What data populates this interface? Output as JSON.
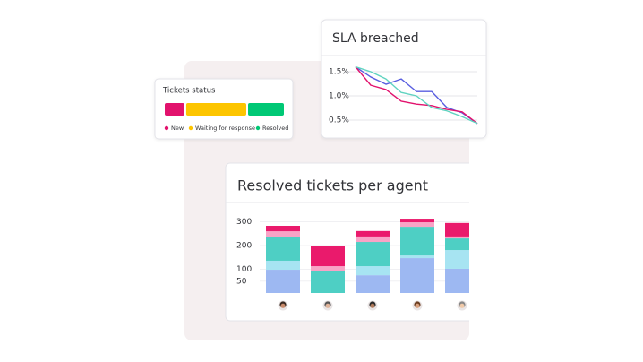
{
  "chart_data": [
    {
      "type": "bar",
      "orientation": "horizontal",
      "stacked": true,
      "title": "Tickets status",
      "categories": [
        null
      ],
      "series": [
        {
          "name": "New",
          "color": "#e2126d",
          "values": [
            17
          ]
        },
        {
          "name": "Waiting for response",
          "color": "#fdc500",
          "values": [
            52
          ]
        },
        {
          "name": "Resolved",
          "color": "#00c875",
          "values": [
            31
          ]
        }
      ],
      "legend": "bottom"
    },
    {
      "type": "line",
      "title": "SLA breached",
      "categories": [
        null,
        null,
        null,
        null,
        null,
        null,
        null,
        null,
        null
      ],
      "series": [
        {
          "name": null,
          "color": "#5a5fe0",
          "values": [
            1.6,
            1.39,
            1.24,
            1.35,
            1.09,
            1.09,
            0.76,
            0.65,
            0.43
          ]
        },
        {
          "name": null,
          "color": "#e2126d",
          "values": [
            1.6,
            1.22,
            1.13,
            0.89,
            0.83,
            0.8,
            0.72,
            0.67,
            0.43
          ]
        },
        {
          "name": null,
          "color": "#5fd3c0",
          "values": [
            1.6,
            1.5,
            1.35,
            1.07,
            1.0,
            0.76,
            0.69,
            0.57,
            0.43
          ]
        }
      ],
      "ylim": [
        0.4,
        1.6
      ],
      "yticks": [
        {
          "value": 1.5,
          "label": "1.5%"
        },
        {
          "value": 1.0,
          "label": "1.0%"
        },
        {
          "value": 0.5,
          "label": "0.5%"
        }
      ],
      "grid": true
    },
    {
      "type": "bar",
      "orientation": "vertical",
      "stacked": true,
      "title": "Resolved tickets per agent",
      "categories": [
        null,
        null,
        null,
        null,
        null
      ],
      "series": [
        {
          "name": null,
          "color": "#9db8f2",
          "values": [
            98,
            0,
            75,
            147,
            102
          ]
        },
        {
          "name": null,
          "color": "#a7e4f2",
          "values": [
            38,
            0,
            38,
            11,
            79
          ]
        },
        {
          "name": null,
          "color": "#4ecfc4",
          "values": [
            98,
            94,
            102,
            121,
            49
          ]
        },
        {
          "name": null,
          "color": "#f8a3c6",
          "values": [
            26,
            19,
            23,
            19,
            8
          ]
        },
        {
          "name": null,
          "color": "#ea1a6c",
          "values": [
            23,
            87,
            23,
            15,
            57
          ]
        }
      ],
      "ylim": [
        0,
        320
      ],
      "yticks": [
        300,
        200,
        100,
        50
      ],
      "grid": true
    }
  ]
}
